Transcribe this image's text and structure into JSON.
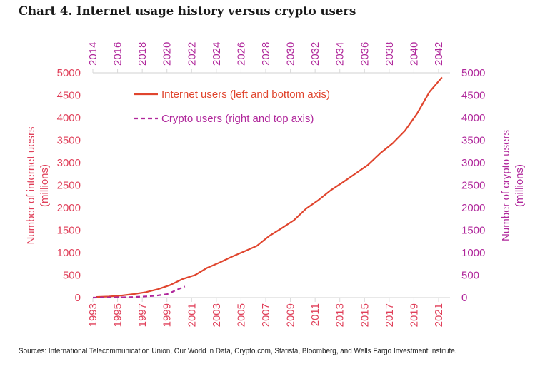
{
  "title": "Chart 4. Internet usage history versus crypto users",
  "source": "Sources: International Telecommunication Union, Our World in Data, Crypto.com, Statista, Bloomberg, and Wells Fargo Investment Institute.",
  "chart_data": {
    "type": "line",
    "title": "Chart 4. Internet usage history versus crypto users",
    "legend_placement": "top-left",
    "grid": false,
    "colors": {
      "internet": "#e0452e",
      "crypto": "#b0279b",
      "left_axis_text": "#e0405a",
      "right_axis_text": "#b0279b"
    },
    "ylabel_left": "Number of internet uesrs (millions)",
    "ylabel_left_lines": [
      "Number of internet uesrs",
      "(millions)"
    ],
    "ylabel_right": "Number of crypto users (millions)",
    "ylabel_right_lines": [
      "Number of crypto users",
      "(millions)"
    ],
    "ylim_left": [
      0,
      5000
    ],
    "ylim_right": [
      0,
      5000
    ],
    "yticks": [
      "0",
      "500",
      "1000",
      "1500",
      "2000",
      "2500",
      "3000",
      "3500",
      "4000",
      "4500",
      "5000"
    ],
    "xticks_bottom": [
      "1993",
      "1995",
      "1997",
      "1999",
      "2001",
      "2003",
      "2005",
      "2007",
      "2009",
      "2011",
      "2013",
      "2015",
      "2017",
      "2019",
      "2021"
    ],
    "xticks_top": [
      "2014",
      "2016",
      "2018",
      "2020",
      "2022",
      "2024",
      "2026",
      "2028",
      "2030",
      "2032",
      "2034",
      "2036",
      "2038",
      "2040",
      "2042"
    ],
    "xlim_bottom": [
      1993,
      2021
    ],
    "xlim_top": [
      2014,
      2042
    ],
    "series": [
      {
        "name": "Internet users (left and bottom axis)",
        "axis": "left-bottom",
        "style": "solid",
        "x": [
          1993,
          1994,
          1995,
          1996,
          1997,
          1998,
          1999,
          2000,
          2001,
          2002,
          2003,
          2004,
          2005,
          2006,
          2007,
          2008,
          2009,
          2010,
          2011,
          2012,
          2013,
          2014,
          2015,
          2016,
          2017,
          2018,
          2019,
          2020,
          2021
        ],
        "values": [
          14,
          25,
          45,
          77,
          120,
          188,
          281,
          414,
          502,
          665,
          781,
          913,
          1030,
          1150,
          1370,
          1540,
          1720,
          1980,
          2170,
          2390,
          2570,
          2760,
          2950,
          3210,
          3430,
          3710,
          4100,
          4580,
          4900
        ]
      },
      {
        "name": "Crypto users (right and top axis)",
        "axis": "right-top",
        "style": "dashed",
        "x": [
          2014,
          2015,
          2016,
          2017,
          2018,
          2019,
          2020,
          2021
        ],
        "values": [
          0,
          3,
          6,
          10,
          22,
          40,
          75,
          250
        ]
      }
    ]
  }
}
